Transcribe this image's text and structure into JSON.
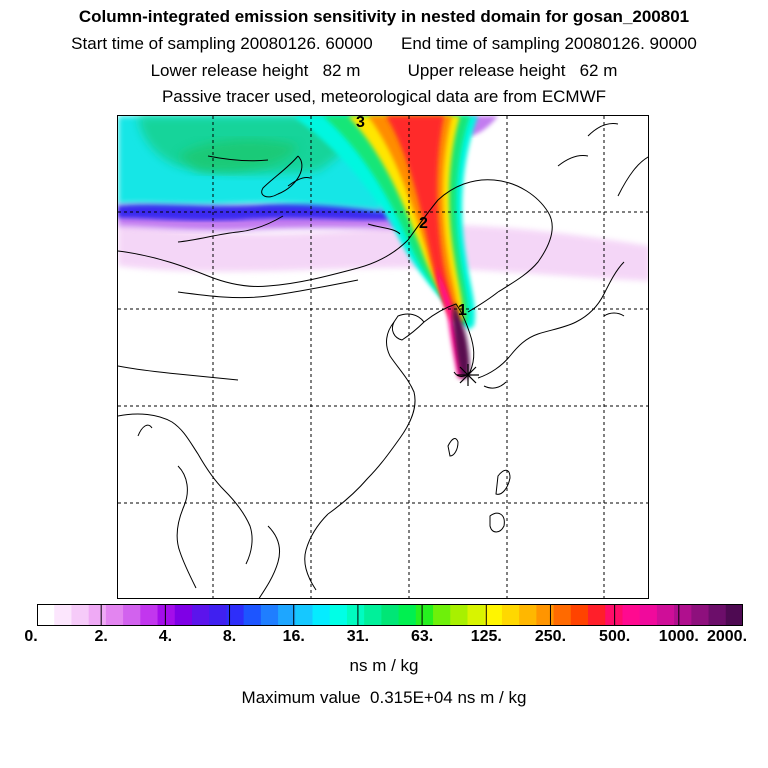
{
  "header": {
    "title": "Column-integrated emission sensitivity in nested domain for gosan_200801",
    "sampling_start": "Start time of sampling 20080126. 60000",
    "sampling_end": "End time of sampling 20080126. 90000",
    "release_lower": "Lower release height   82 m",
    "release_upper": "Upper release height   62 m",
    "tracer_note": "Passive tracer used, meteorological data are from ECMWF"
  },
  "map": {
    "markers": [
      {
        "label": "3",
        "position": "top, north of plume"
      },
      {
        "label": "2",
        "position": "northern China"
      },
      {
        "label": "1",
        "position": "Korean peninsula"
      }
    ],
    "receptor_symbol": "asterisk",
    "colors": {
      "plume_max": "#5a0a50",
      "plume_high": "#ff1a8c",
      "plume_mid": "#ff8c00",
      "plume_low": "#ffe600",
      "band_green": "#00e68a",
      "band_cyan": "#00ffff",
      "band_blue": "#1a1aff",
      "band_violet": "#b000ff",
      "band_light": "#f2c6f5"
    }
  },
  "colorbar": {
    "labels": [
      "0.",
      "2.",
      "4.",
      "8.",
      "16.",
      "31.",
      "63.",
      "125.",
      "250.",
      "500.",
      "1000.",
      "2000."
    ],
    "colors": [
      "#ffffff",
      "#fce6fd",
      "#f6cbf9",
      "#efaaf5",
      "#e385f0",
      "#d262ee",
      "#c236ee",
      "#a40dea",
      "#7f00e6",
      "#5c14ec",
      "#4020f0",
      "#2e2efa",
      "#1d55ff",
      "#1f7eff",
      "#1ea6ff",
      "#16c8ff",
      "#05ecff",
      "#00ffe6",
      "#00fcc0",
      "#00f09a",
      "#00e676",
      "#00f050",
      "#26f01f",
      "#6ef00a",
      "#a8f000",
      "#d8f400",
      "#fff500",
      "#ffd800",
      "#ffb700",
      "#ff9500",
      "#ff6a00",
      "#ff4300",
      "#ff1f2a",
      "#ff0d6a",
      "#ff0a90",
      "#f00a9c",
      "#cf0e98",
      "#b00f8e",
      "#8e107d",
      "#6c0e6a",
      "#4e0a52"
    ],
    "units": "ns m / kg",
    "max_value": "Maximum value  0.315E+04 ns m / kg"
  }
}
